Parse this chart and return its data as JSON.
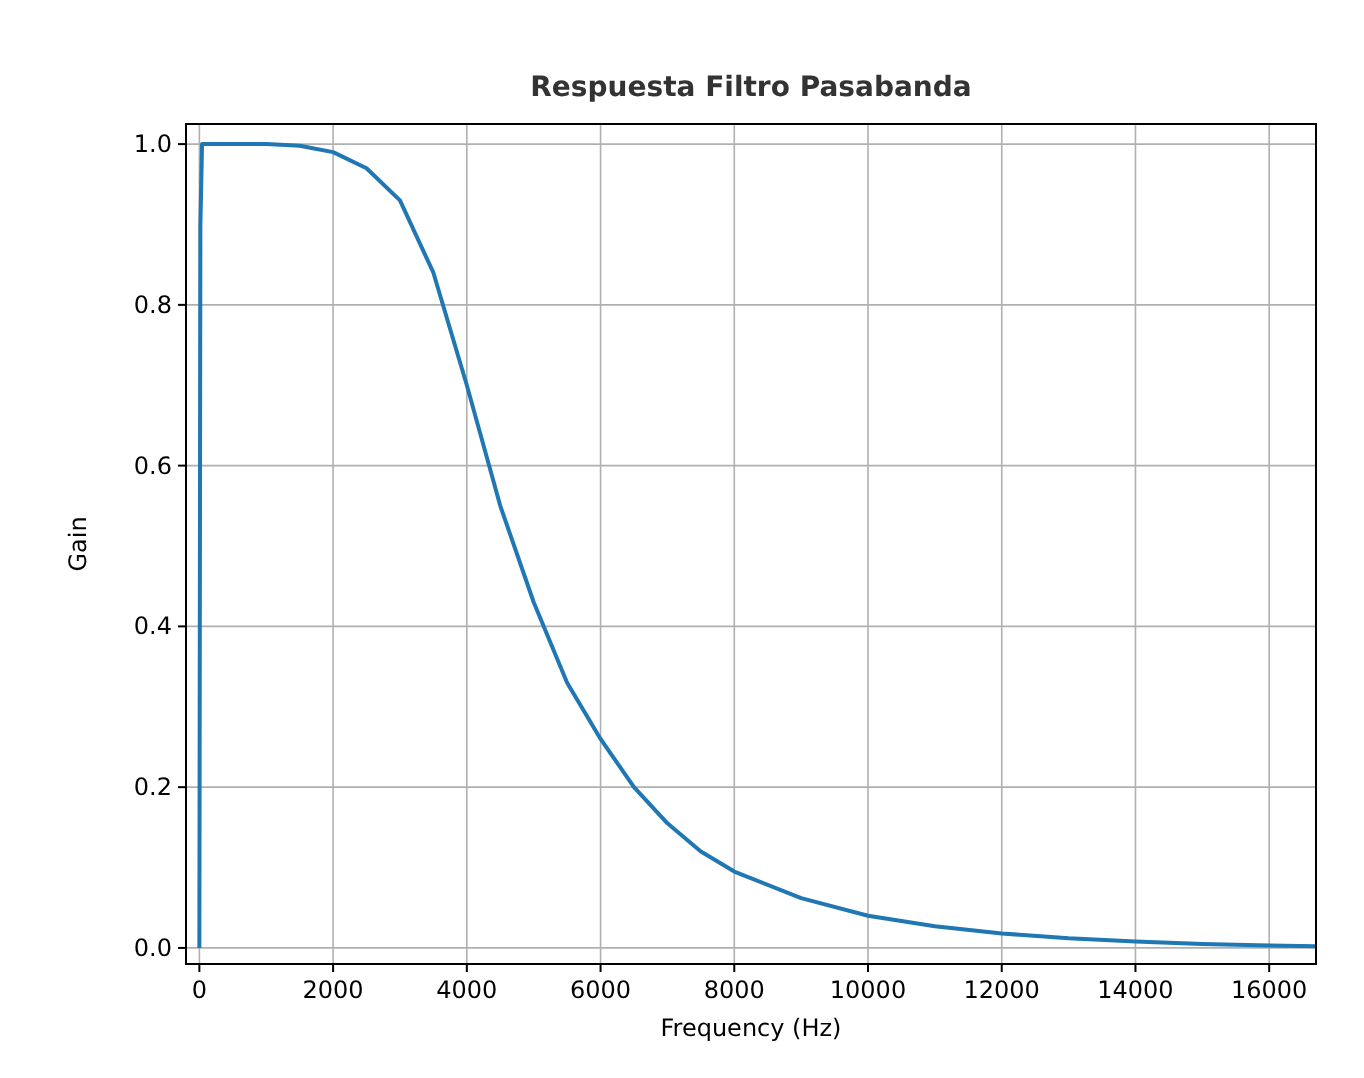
{
  "chart_data": {
    "type": "line",
    "title": "Respuesta Filtro Pasabanda",
    "xlabel": "Frequency (Hz)",
    "ylabel": "Gain",
    "x": [
      0,
      15,
      40,
      100,
      500,
      1000,
      1500,
      2000,
      2500,
      3000,
      3500,
      4000,
      4500,
      5000,
      5500,
      6000,
      6500,
      7000,
      7500,
      8000,
      9000,
      10000,
      11000,
      12000,
      13000,
      14000,
      15000,
      16000,
      16700
    ],
    "series": [
      {
        "color": "#1f77b4",
        "values": [
          0,
          0.9,
          1.0,
          1.0,
          1.0,
          1.0,
          0.998,
          0.99,
          0.97,
          0.93,
          0.84,
          0.7,
          0.55,
          0.43,
          0.33,
          0.26,
          0.2,
          0.155,
          0.12,
          0.095,
          0.062,
          0.04,
          0.027,
          0.018,
          0.012,
          0.008,
          0.005,
          0.003,
          0.002
        ]
      }
    ],
    "xlim": [
      -200,
      16700
    ],
    "ylim": [
      -0.02,
      1.025
    ],
    "xticks": [
      0,
      2000,
      4000,
      6000,
      8000,
      10000,
      12000,
      14000,
      16000
    ],
    "yticks": [
      {
        "value": 0,
        "label": "0.0"
      },
      {
        "value": 0.2,
        "label": "0.2"
      },
      {
        "value": 0.4,
        "label": "0.4"
      },
      {
        "value": 0.6,
        "label": "0.6"
      },
      {
        "value": 0.8,
        "label": "0.8"
      },
      {
        "value": 1,
        "label": "1.0"
      }
    ],
    "grid": true,
    "marker": "none",
    "line_style": "solid"
  }
}
